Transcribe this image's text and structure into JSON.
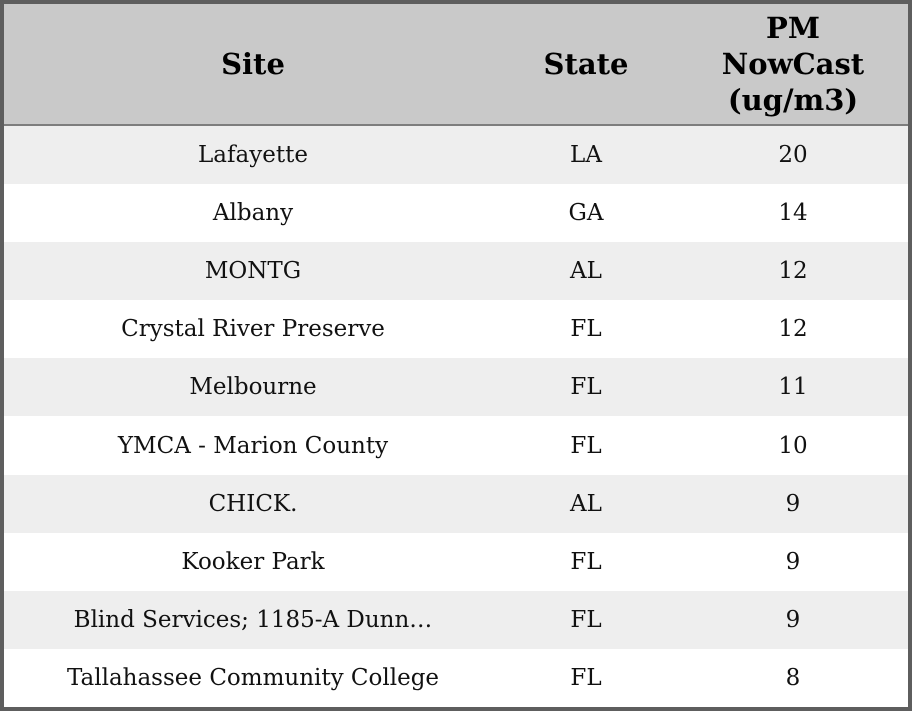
{
  "chart_data": {
    "type": "table",
    "columns": [
      "Site",
      "State",
      "PM NowCast (ug/m3)"
    ],
    "rows": [
      [
        "Lafayette",
        "LA",
        20
      ],
      [
        "Albany",
        "GA",
        14
      ],
      [
        "MONTG",
        "AL",
        12
      ],
      [
        "Crystal River Preserve",
        "FL",
        12
      ],
      [
        "Melbourne",
        "FL",
        11
      ],
      [
        "YMCA - Marion County",
        "FL",
        10
      ],
      [
        "CHICK.",
        "AL",
        9
      ],
      [
        "Kooker Park",
        "FL",
        9
      ],
      [
        "Blind Services; 1185-A Dunn…",
        "FL",
        9
      ],
      [
        "Tallahassee Community College",
        "FL",
        8
      ]
    ]
  },
  "colors": {
    "header_bg": "#c9c9c9",
    "row_alt_bg": "#eeeeee",
    "row_bg": "#ffffff",
    "border": "#5e5e5e",
    "text": "#111111"
  }
}
